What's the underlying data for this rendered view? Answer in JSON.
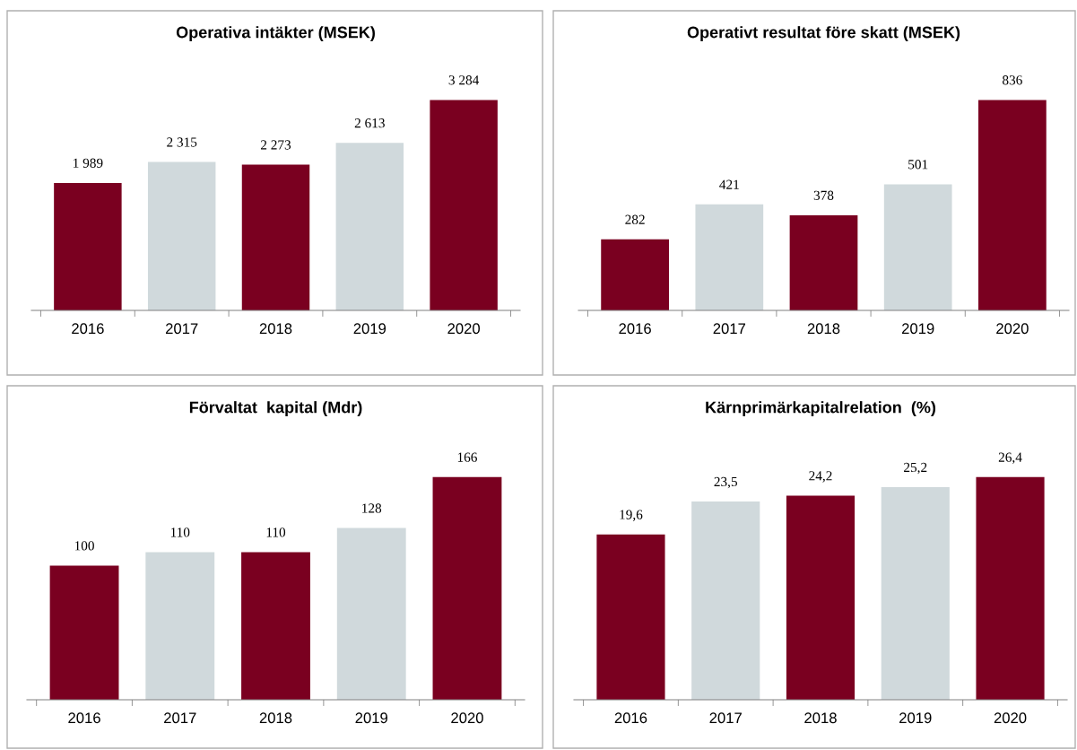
{
  "chart_data": [
    {
      "type": "bar",
      "title": "Operativa intäkter (MSEK)",
      "categories": [
        "2016",
        "2017",
        "2018",
        "2019",
        "2020"
      ],
      "values": [
        1989,
        2315,
        2273,
        2613,
        3284
      ],
      "value_labels": [
        "1 989",
        "2 315",
        "2 273",
        "2 613",
        "3 284"
      ],
      "colors": [
        "#7a0020",
        "#d0d9dc",
        "#7a0020",
        "#d0d9dc",
        "#7a0020"
      ],
      "tick_labels": "x",
      "grid": false,
      "legend": false
    },
    {
      "type": "bar",
      "title": "Operativt resultat före skatt (MSEK)",
      "categories": [
        "2016",
        "2017",
        "2018",
        "2019",
        "2020"
      ],
      "values": [
        282,
        421,
        378,
        501,
        836
      ],
      "value_labels": [
        "282",
        "421",
        "378",
        "501",
        "836"
      ],
      "colors": [
        "#7a0020",
        "#d0d9dc",
        "#7a0020",
        "#d0d9dc",
        "#7a0020"
      ],
      "tick_labels": "x",
      "grid": false,
      "legend": false
    },
    {
      "type": "bar",
      "title": "Förvaltat  kapital (Mdr)",
      "categories": [
        "2016",
        "2017",
        "2018",
        "2019",
        "2020"
      ],
      "values": [
        100,
        110,
        110,
        128,
        166
      ],
      "value_labels": [
        "100",
        "110",
        "110",
        "128",
        "166"
      ],
      "colors": [
        "#7a0020",
        "#d0d9dc",
        "#7a0020",
        "#d0d9dc",
        "#7a0020"
      ],
      "tick_labels": "x",
      "grid": false,
      "legend": false
    },
    {
      "type": "bar",
      "title": "Kärnprimärkapitalrelation  (%)",
      "categories": [
        "2016",
        "2017",
        "2018",
        "2019",
        "2020"
      ],
      "values": [
        19.6,
        23.5,
        24.2,
        25.2,
        26.4
      ],
      "value_labels": [
        "19,6",
        "23,5",
        "24,2",
        "25,2",
        "26,4"
      ],
      "colors": [
        "#7a0020",
        "#d0d9dc",
        "#7a0020",
        "#d0d9dc",
        "#7a0020"
      ],
      "tick_labels": "x",
      "grid": false,
      "legend": false
    }
  ]
}
